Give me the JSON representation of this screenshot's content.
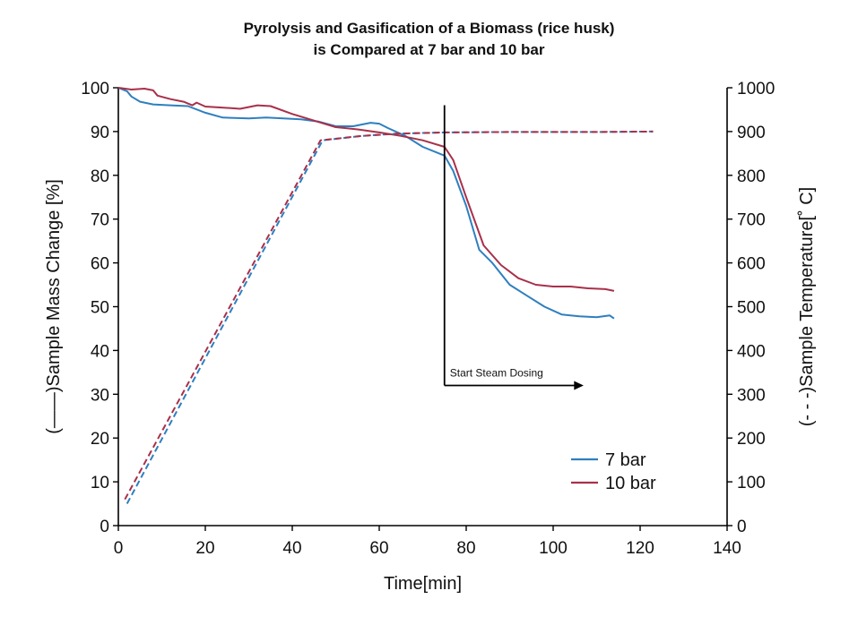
{
  "chart_data": {
    "type": "line",
    "title": [
      "Pyrolysis and Gasification of a Biomass (rice husk)",
      "is Compared at 7 bar and 10 bar"
    ],
    "xlabel": "Time[min]",
    "ylabel_left": "(——)Sample Mass Change [%]",
    "ylabel_right": "(- - -)Sample Temperature[˚ C]",
    "xlim": [
      0,
      140
    ],
    "ylim_left": [
      0,
      100
    ],
    "ylim_right": [
      0,
      1000
    ],
    "x_ticks": [
      0,
      20,
      40,
      60,
      80,
      100,
      120,
      140
    ],
    "y_left_ticks": [
      0,
      10,
      20,
      30,
      40,
      50,
      60,
      70,
      80,
      90,
      100
    ],
    "y_right_ticks": [
      0,
      100,
      200,
      300,
      400,
      500,
      600,
      700,
      800,
      900,
      1000
    ],
    "grid": false,
    "legend_position": "bottom-right",
    "annotation": {
      "label": "Start Steam Dosing",
      "x": 75
    },
    "colors": {
      "7 bar": "#2e7fbf",
      "10 bar": "#a8304a"
    },
    "series": [
      {
        "name": "7 bar",
        "kind": "mass",
        "axis": "left",
        "x": [
          0,
          2,
          3,
          5,
          8,
          12,
          16,
          20,
          24,
          30,
          34,
          38,
          42,
          46,
          50,
          54,
          58,
          60,
          62,
          66,
          70,
          75,
          77,
          80,
          83,
          86,
          90,
          94,
          98,
          102,
          106,
          110,
          113,
          114
        ],
        "values": [
          100,
          99.2,
          98,
          96.8,
          96.2,
          96,
          95.8,
          94.3,
          93.2,
          93,
          93.2,
          93,
          92.8,
          92.3,
          91.2,
          91.2,
          92,
          91.8,
          90.8,
          89,
          86.5,
          84.5,
          81,
          73,
          63,
          60,
          55,
          52.5,
          50,
          48.2,
          47.8,
          47.6,
          48,
          47.3
        ]
      },
      {
        "name": "10 bar",
        "kind": "mass",
        "axis": "left",
        "x": [
          0,
          3,
          6,
          8,
          9,
          12,
          15,
          17,
          18,
          20,
          25,
          28,
          32,
          35,
          40,
          45,
          50,
          55,
          60,
          65,
          70,
          75,
          77,
          80,
          84,
          88,
          92,
          96,
          100,
          104,
          108,
          112,
          114
        ],
        "values": [
          100,
          99.6,
          99.8,
          99.4,
          98.2,
          97.4,
          96.8,
          96,
          96.6,
          95.7,
          95.4,
          95.2,
          96,
          95.8,
          94,
          92.5,
          91,
          90.5,
          89.8,
          89,
          88,
          86.5,
          83.5,
          75,
          64,
          59.5,
          56.5,
          55,
          54.6,
          54.6,
          54.2,
          54,
          53.6
        ]
      },
      {
        "name": "7 bar",
        "kind": "temperature",
        "axis": "right",
        "x": [
          2,
          47,
          56,
          64,
          75,
          90,
          110,
          123
        ],
        "values": [
          50,
          880,
          890,
          895,
          898,
          899,
          899,
          900
        ]
      },
      {
        "name": "10 bar",
        "kind": "temperature",
        "axis": "right",
        "x": [
          1.5,
          46.5,
          56,
          64,
          75,
          90,
          110,
          123
        ],
        "values": [
          60,
          880,
          890,
          895,
          898,
          899,
          899,
          900
        ]
      }
    ]
  }
}
